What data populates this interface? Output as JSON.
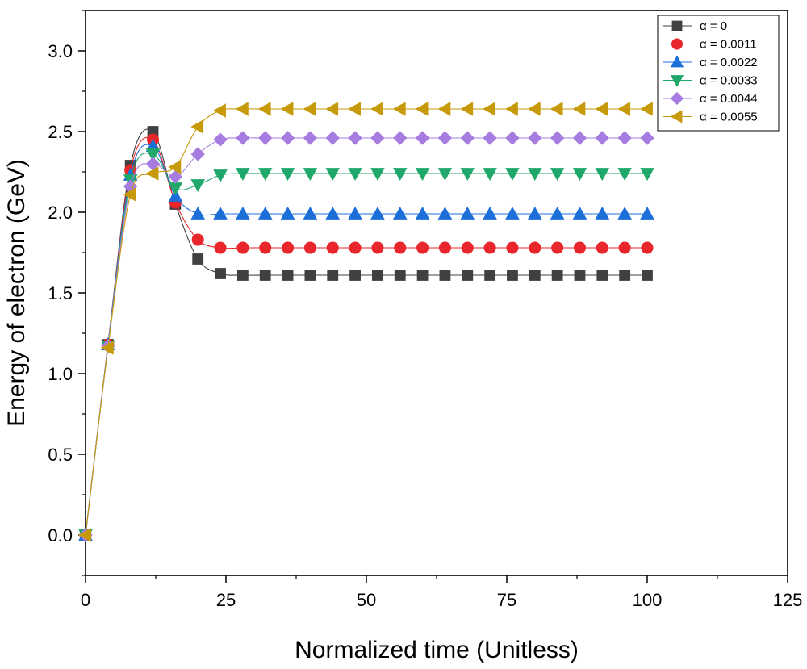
{
  "chart_data": {
    "type": "line",
    "title": "",
    "xlabel": "Normalized time (Unitless)",
    "ylabel": "Energy of electron (GeV)",
    "xlim": [
      0,
      125
    ],
    "ylim": [
      -0.25,
      3.25
    ],
    "x_ticks": [
      0,
      25,
      50,
      75,
      100,
      125
    ],
    "y_ticks": [
      0.0,
      0.5,
      1.0,
      1.5,
      2.0,
      2.5,
      3.0
    ],
    "x_tick_labels": [
      "0",
      "25",
      "50",
      "75",
      "100",
      "125"
    ],
    "y_tick_labels": [
      "0.0",
      "0.5",
      "1.0",
      "1.5",
      "2.0",
      "2.5",
      "3.0"
    ],
    "grid": false,
    "legend_position": "top-right",
    "x": [
      0,
      4,
      8,
      12,
      16,
      20,
      24,
      28,
      32,
      36,
      40,
      44,
      48,
      52,
      56,
      60,
      64,
      68,
      72,
      76,
      80,
      84,
      88,
      92,
      96,
      100
    ],
    "series": [
      {
        "name": "α = 0",
        "color": "#404040",
        "marker": "square",
        "values": [
          0,
          1.18,
          2.29,
          2.5,
          2.05,
          1.71,
          1.62,
          1.61,
          1.61,
          1.61,
          1.61,
          1.61,
          1.61,
          1.61,
          1.61,
          1.61,
          1.61,
          1.61,
          1.61,
          1.61,
          1.61,
          1.61,
          1.61,
          1.61,
          1.61,
          1.61
        ]
      },
      {
        "name": "α = 0.0011",
        "color": "#e8262b",
        "marker": "circle",
        "values": [
          0,
          1.18,
          2.26,
          2.45,
          2.06,
          1.83,
          1.78,
          1.78,
          1.78,
          1.78,
          1.78,
          1.78,
          1.78,
          1.78,
          1.78,
          1.78,
          1.78,
          1.78,
          1.78,
          1.78,
          1.78,
          1.78,
          1.78,
          1.78,
          1.78,
          1.78
        ]
      },
      {
        "name": "α = 0.0022",
        "color": "#1c6fd8",
        "marker": "triangle-up",
        "values": [
          0,
          1.18,
          2.23,
          2.41,
          2.1,
          1.99,
          1.99,
          1.99,
          1.99,
          1.99,
          1.99,
          1.99,
          1.99,
          1.99,
          1.99,
          1.99,
          1.99,
          1.99,
          1.99,
          1.99,
          1.99,
          1.99,
          1.99,
          1.99,
          1.99,
          1.99
        ]
      },
      {
        "name": "α = 0.0033",
        "color": "#1fa86a",
        "marker": "triangle-down",
        "values": [
          0,
          1.17,
          2.2,
          2.36,
          2.15,
          2.17,
          2.23,
          2.24,
          2.24,
          2.24,
          2.24,
          2.24,
          2.24,
          2.24,
          2.24,
          2.24,
          2.24,
          2.24,
          2.24,
          2.24,
          2.24,
          2.24,
          2.24,
          2.24,
          2.24,
          2.24
        ]
      },
      {
        "name": "α = 0.0044",
        "color": "#a67ce0",
        "marker": "diamond",
        "values": [
          0,
          1.17,
          2.16,
          2.3,
          2.22,
          2.36,
          2.45,
          2.46,
          2.46,
          2.46,
          2.46,
          2.46,
          2.46,
          2.46,
          2.46,
          2.46,
          2.46,
          2.46,
          2.46,
          2.46,
          2.46,
          2.46,
          2.46,
          2.46,
          2.46,
          2.46
        ]
      },
      {
        "name": "α = 0.0055",
        "color": "#c79a0b",
        "marker": "triangle-left",
        "values": [
          0,
          1.16,
          2.11,
          2.24,
          2.28,
          2.53,
          2.63,
          2.64,
          2.64,
          2.64,
          2.64,
          2.64,
          2.64,
          2.64,
          2.64,
          2.64,
          2.64,
          2.64,
          2.64,
          2.64,
          2.64,
          2.64,
          2.64,
          2.64,
          2.64,
          2.64
        ]
      }
    ]
  }
}
